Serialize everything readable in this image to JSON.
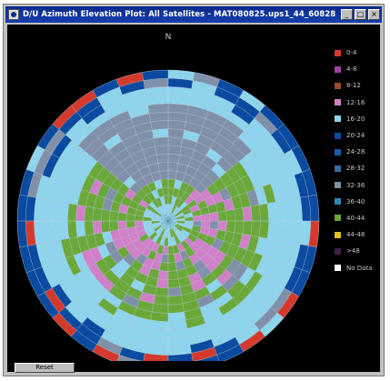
{
  "window": {
    "title": "D/U Azimuth Elevation Plot: All Satellites - MAT080825.ups1_44_60828",
    "controls": [
      {
        "name": "minimize-button",
        "glyph": "_"
      },
      {
        "name": "maximize-button",
        "glyph": "□"
      },
      {
        "name": "close-button",
        "glyph": "×"
      }
    ]
  },
  "plot": {
    "north_label": "N",
    "background": "#000000",
    "grid_color": "#c8d8e8"
  },
  "legend": [
    {
      "label": "0-4",
      "color": "#d43a2c"
    },
    {
      "label": "4-8",
      "color": "#a040a0"
    },
    {
      "label": "8-12",
      "color": "#9a4a2a"
    },
    {
      "label": "12-16",
      "color": "#d080c8"
    },
    {
      "label": "16-20",
      "color": "#8ed4ec"
    },
    {
      "label": "20-24",
      "color": "#0a4aa0"
    },
    {
      "label": "24-28",
      "color": "#1a5ab0"
    },
    {
      "label": "28-32",
      "color": "#3a6a9a"
    },
    {
      "label": "32-36",
      "color": "#8090a8"
    },
    {
      "label": "36-40",
      "color": "#2a88b8"
    },
    {
      "label": "40-44",
      "color": "#6aa83a"
    },
    {
      "label": "44-48",
      "color": "#e0c020"
    },
    {
      "label": ">48",
      "color": "#40204a"
    },
    {
      "label": "No Data",
      "color": "#ffffff"
    }
  ],
  "buttons": {
    "reset_label": "Reset"
  }
}
